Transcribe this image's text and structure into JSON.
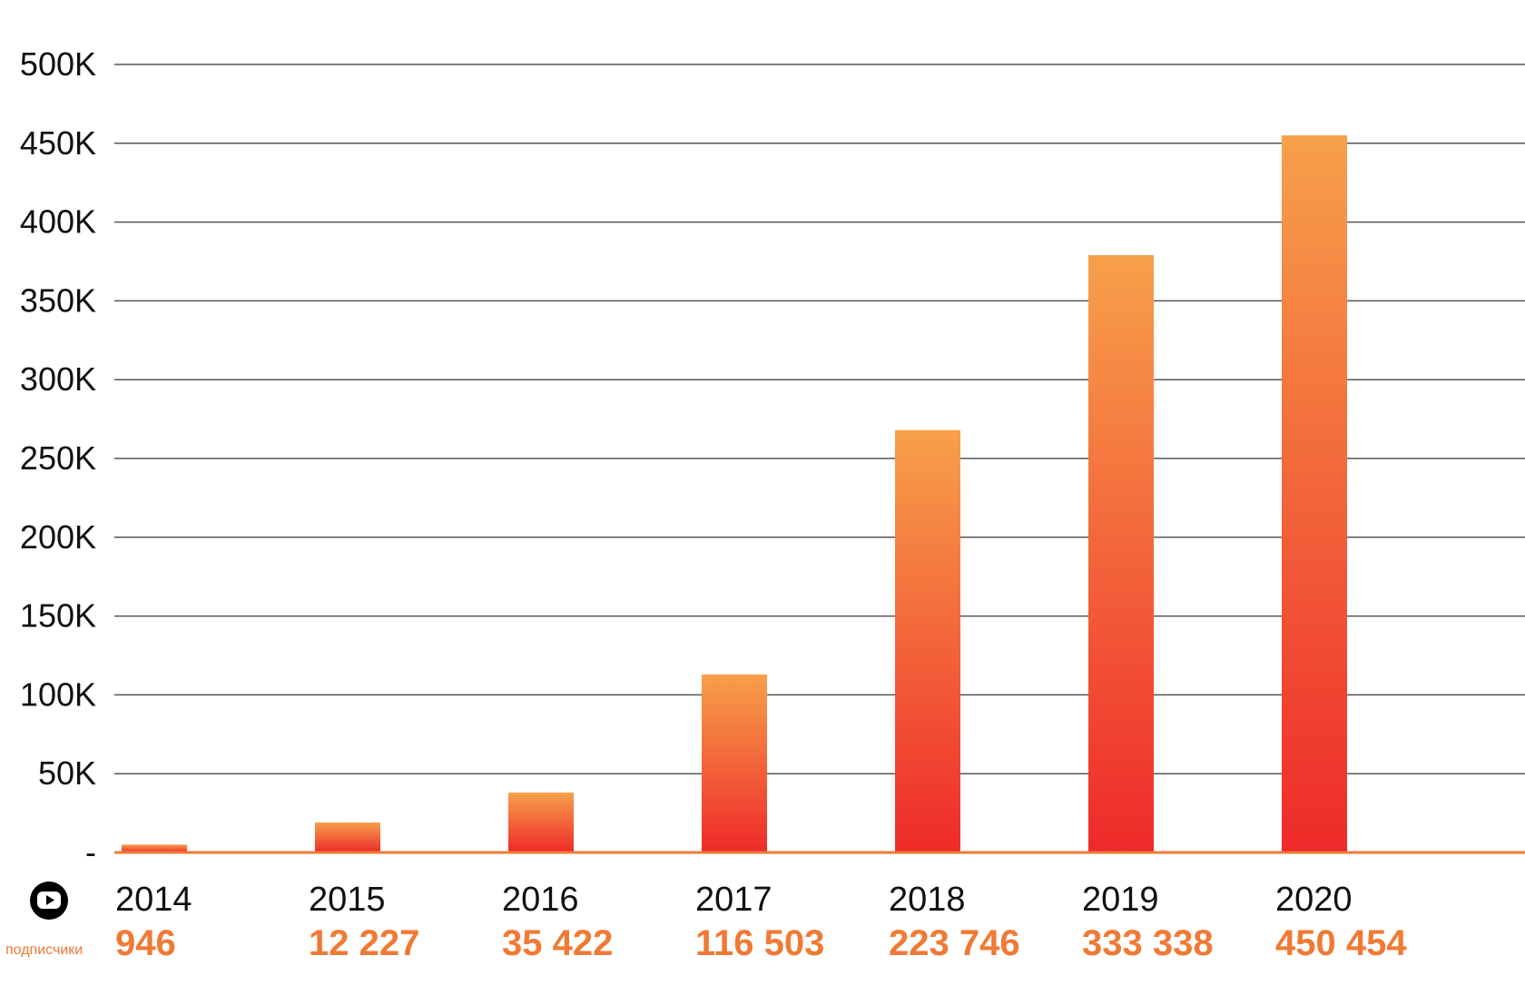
{
  "chart_data": {
    "type": "bar",
    "categories": [
      "2014",
      "2015",
      "2016",
      "2017",
      "2018",
      "2019",
      "2020"
    ],
    "series": [
      {
        "values": [
          5000,
          19000,
          38000,
          113000,
          268000,
          379000,
          455000
        ]
      }
    ],
    "ylim": [
      0,
      500000
    ],
    "y_ticks": [
      "-",
      "50K",
      "100K",
      "150K",
      "200K",
      "250K",
      "300K",
      "350K",
      "400K",
      "450K",
      "500K"
    ],
    "grid": true,
    "subscriber_caption": "подписчики",
    "subscriber_counts": [
      "946",
      "12 227",
      "35 422",
      "116 503",
      "223 746",
      "333 338",
      "450 454"
    ],
    "icon": "youtube-icon"
  },
  "colors": {
    "bar_top": "#F7A04A",
    "bar_bottom": "#EE2A2A",
    "accent": "#F07A35",
    "baseline": "#F07A35",
    "grid": "#555555"
  }
}
